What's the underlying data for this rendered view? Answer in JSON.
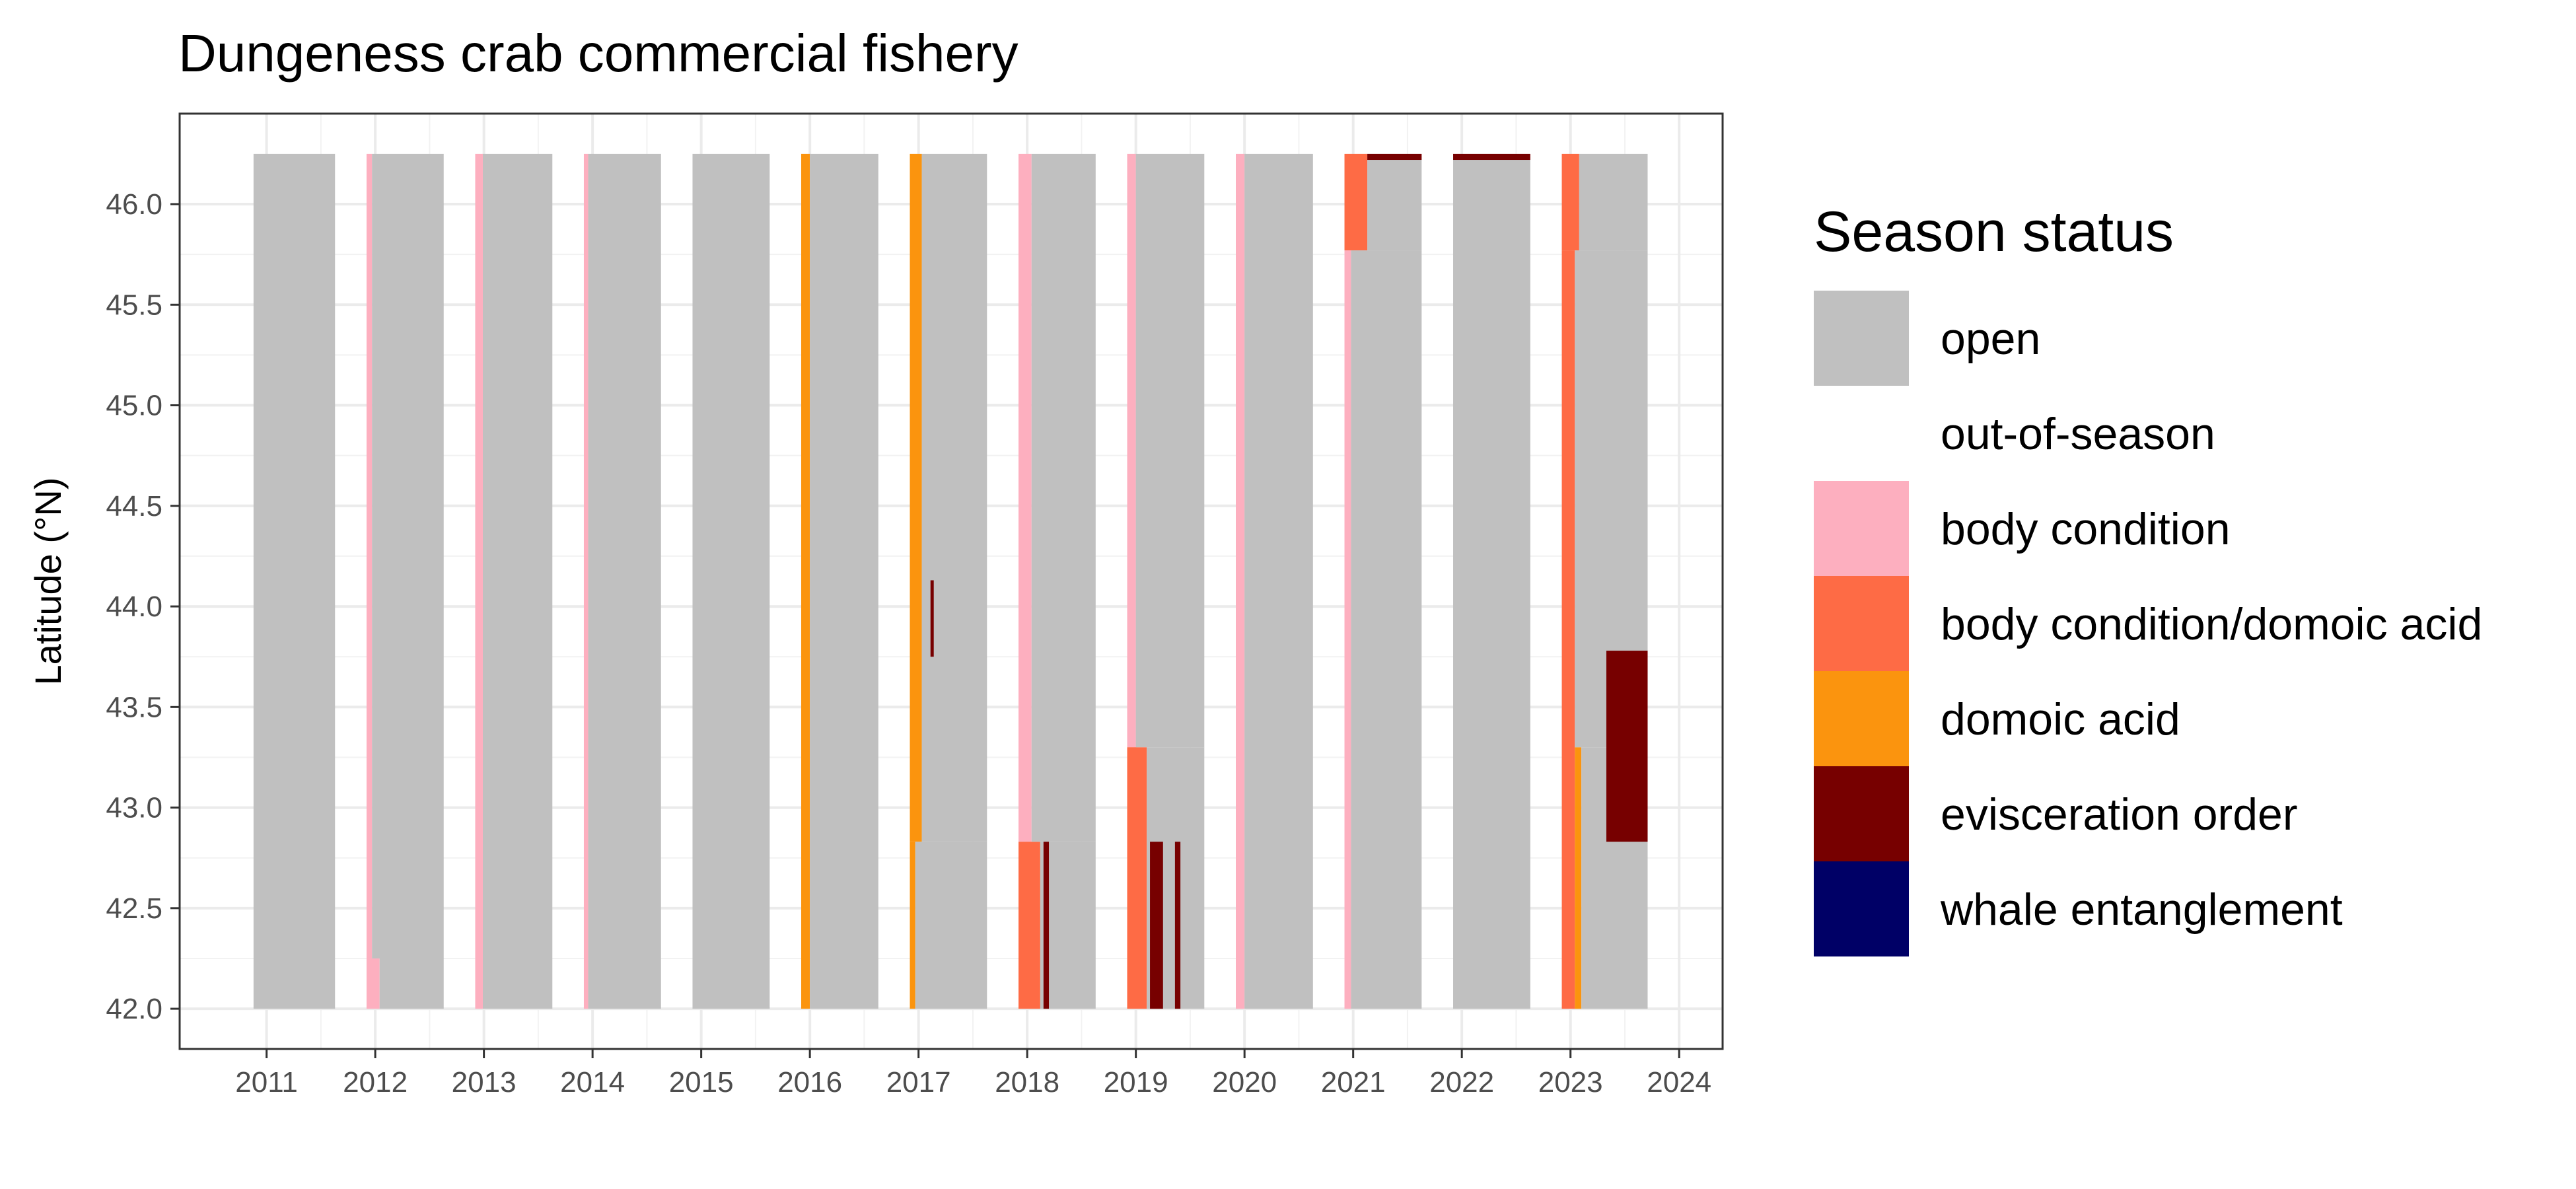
{
  "chart_data": {
    "type": "heatmap",
    "title": "Dungeness crab commercial fishery",
    "xlabel": "",
    "ylabel": "Latitude (°N)",
    "xlim": [
      2010.2,
      2024.4
    ],
    "ylim": [
      41.8,
      46.45
    ],
    "x_ticks": [
      2011,
      2012,
      2013,
      2014,
      2015,
      2016,
      2017,
      2018,
      2019,
      2020,
      2021,
      2022,
      2023,
      2024
    ],
    "y_ticks": [
      "42.0",
      "42.5",
      "43.0",
      "43.5",
      "44.0",
      "44.5",
      "45.0",
      "45.5",
      "46.0"
    ],
    "grid": true,
    "legend_position": "right",
    "legend": {
      "title": "Season status",
      "items": [
        {
          "label": "open",
          "color": "#c0c0c0"
        },
        {
          "label": "out-of-season",
          "color": "#ffffff"
        },
        {
          "label": "body condition",
          "color": "#fdafbf"
        },
        {
          "label": "body condition/domoic acid",
          "color": "#fe6b45"
        },
        {
          "label": "domoic acid",
          "color": "#fb940e"
        },
        {
          "label": "evisceration order",
          "color": "#770000"
        },
        {
          "label": "whale entanglement",
          "color": "#000066"
        }
      ]
    },
    "status_blocks": [
      {
        "status": "open",
        "x0": 2010.88,
        "x1": 2011.63,
        "y0": 42.0,
        "y1": 46.25
      },
      {
        "status": "body condition",
        "x0": 2011.92,
        "x1": 2011.97,
        "y0": 42.25,
        "y1": 46.25
      },
      {
        "status": "body condition",
        "x0": 2011.92,
        "x1": 2012.04,
        "y0": 42.0,
        "y1": 42.25
      },
      {
        "status": "open",
        "x0": 2011.97,
        "x1": 2012.63,
        "y0": 42.25,
        "y1": 46.25
      },
      {
        "status": "open",
        "x0": 2012.04,
        "x1": 2012.63,
        "y0": 42.0,
        "y1": 42.25
      },
      {
        "status": "body condition",
        "x0": 2012.92,
        "x1": 2012.99,
        "y0": 42.0,
        "y1": 46.25
      },
      {
        "status": "open",
        "x0": 2012.99,
        "x1": 2013.63,
        "y0": 42.0,
        "y1": 46.25
      },
      {
        "status": "body condition",
        "x0": 2013.92,
        "x1": 2013.96,
        "y0": 42.0,
        "y1": 46.25
      },
      {
        "status": "open",
        "x0": 2013.96,
        "x1": 2014.63,
        "y0": 42.0,
        "y1": 46.25
      },
      {
        "status": "open",
        "x0": 2014.92,
        "x1": 2015.63,
        "y0": 42.0,
        "y1": 46.25
      },
      {
        "status": "domoic acid",
        "x0": 2015.92,
        "x1": 2016.0,
        "y0": 42.0,
        "y1": 46.25
      },
      {
        "status": "open",
        "x0": 2016.0,
        "x1": 2016.63,
        "y0": 42.0,
        "y1": 46.25
      },
      {
        "status": "domoic acid",
        "x0": 2016.92,
        "x1": 2017.03,
        "y0": 42.83,
        "y1": 46.25
      },
      {
        "status": "domoic acid",
        "x0": 2016.92,
        "x1": 2016.97,
        "y0": 42.0,
        "y1": 42.83
      },
      {
        "status": "open",
        "x0": 2017.03,
        "x1": 2017.63,
        "y0": 42.83,
        "y1": 46.25
      },
      {
        "status": "open",
        "x0": 2016.97,
        "x1": 2017.63,
        "y0": 42.0,
        "y1": 42.83
      },
      {
        "status": "evisceration order",
        "x0": 2017.11,
        "x1": 2017.14,
        "y0": 43.75,
        "y1": 44.13
      },
      {
        "status": "body condition",
        "x0": 2017.92,
        "x1": 2018.04,
        "y0": 42.83,
        "y1": 46.25
      },
      {
        "status": "body condition/domoic acid",
        "x0": 2017.92,
        "x1": 2018.12,
        "y0": 42.0,
        "y1": 42.83
      },
      {
        "status": "open",
        "x0": 2018.04,
        "x1": 2018.63,
        "y0": 42.83,
        "y1": 46.25
      },
      {
        "status": "open",
        "x0": 2018.12,
        "x1": 2018.63,
        "y0": 42.0,
        "y1": 42.83
      },
      {
        "status": "evisceration order",
        "x0": 2018.15,
        "x1": 2018.2,
        "y0": 42.0,
        "y1": 42.83
      },
      {
        "status": "body condition",
        "x0": 2018.92,
        "x1": 2019.0,
        "y0": 43.3,
        "y1": 46.25
      },
      {
        "status": "body condition/domoic acid",
        "x0": 2018.92,
        "x1": 2019.1,
        "y0": 42.0,
        "y1": 43.3
      },
      {
        "status": "open",
        "x0": 2019.0,
        "x1": 2019.63,
        "y0": 43.3,
        "y1": 46.25
      },
      {
        "status": "open",
        "x0": 2019.1,
        "x1": 2019.63,
        "y0": 42.0,
        "y1": 43.3
      },
      {
        "status": "evisceration order",
        "x0": 2019.13,
        "x1": 2019.25,
        "y0": 42.0,
        "y1": 42.83
      },
      {
        "status": "evisceration order",
        "x0": 2019.36,
        "x1": 2019.41,
        "y0": 42.0,
        "y1": 42.83
      },
      {
        "status": "body condition",
        "x0": 2019.92,
        "x1": 2020.0,
        "y0": 42.0,
        "y1": 46.25
      },
      {
        "status": "open",
        "x0": 2020.0,
        "x1": 2020.63,
        "y0": 42.0,
        "y1": 46.25
      },
      {
        "status": "body condition/domoic acid",
        "x0": 2020.92,
        "x1": 2021.13,
        "y0": 45.77,
        "y1": 46.25
      },
      {
        "status": "body condition",
        "x0": 2020.92,
        "x1": 2020.98,
        "y0": 42.0,
        "y1": 45.77
      },
      {
        "status": "open",
        "x0": 2020.98,
        "x1": 2021.63,
        "y0": 42.0,
        "y1": 45.77
      },
      {
        "status": "open",
        "x0": 2021.13,
        "x1": 2021.63,
        "y0": 45.77,
        "y1": 46.22
      },
      {
        "status": "evisceration order",
        "x0": 2021.13,
        "x1": 2021.63,
        "y0": 46.22,
        "y1": 46.25
      },
      {
        "status": "open",
        "x0": 2021.92,
        "x1": 2022.63,
        "y0": 42.0,
        "y1": 46.22
      },
      {
        "status": "evisceration order",
        "x0": 2021.92,
        "x1": 2022.63,
        "y0": 46.22,
        "y1": 46.25
      },
      {
        "status": "body condition/domoic acid",
        "x0": 2022.92,
        "x1": 2023.08,
        "y0": 45.77,
        "y1": 46.25
      },
      {
        "status": "body condition/domoic acid",
        "x0": 2022.92,
        "x1": 2023.04,
        "y0": 42.0,
        "y1": 45.77
      },
      {
        "status": "domoic acid",
        "x0": 2023.04,
        "x1": 2023.1,
        "y0": 42.0,
        "y1": 43.3
      },
      {
        "status": "open",
        "x0": 2023.08,
        "x1": 2023.71,
        "y0": 45.77,
        "y1": 46.25
      },
      {
        "status": "open",
        "x0": 2023.04,
        "x1": 2023.71,
        "y0": 43.3,
        "y1": 45.77
      },
      {
        "status": "open",
        "x0": 2023.1,
        "x1": 2023.71,
        "y0": 42.0,
        "y1": 43.3
      },
      {
        "status": "evisceration order",
        "x0": 2023.33,
        "x1": 2023.71,
        "y0": 42.83,
        "y1": 43.78
      }
    ]
  }
}
